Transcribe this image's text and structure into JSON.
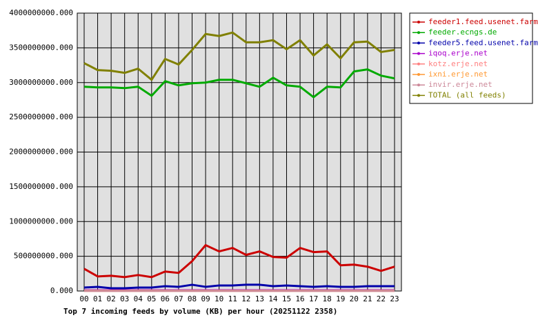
{
  "chart_data": {
    "type": "line",
    "title": "Top 7 incoming feeds by volume (KB) per hour (20251122 2358)",
    "categories": [
      "00",
      "01",
      "02",
      "03",
      "04",
      "05",
      "06",
      "07",
      "08",
      "09",
      "10",
      "11",
      "12",
      "13",
      "14",
      "15",
      "16",
      "17",
      "18",
      "19",
      "20",
      "21",
      "22",
      "23"
    ],
    "ylim": [
      0,
      4000000000
    ],
    "yticks": [
      {
        "value": 0,
        "label": "0.000"
      },
      {
        "value": 500000000,
        "label": "500000000.000"
      },
      {
        "value": 1000000000,
        "label": "1000000000.000"
      },
      {
        "value": 1500000000,
        "label": "1500000000.000"
      },
      {
        "value": 2000000000,
        "label": "2000000000.000"
      },
      {
        "value": 2500000000,
        "label": "2500000000.000"
      },
      {
        "value": 3000000000,
        "label": "3000000000.000"
      },
      {
        "value": 3500000000,
        "label": "3500000000.000"
      },
      {
        "value": 4000000000,
        "label": "4000000000.000"
      }
    ],
    "grid": true,
    "series": [
      {
        "name": "feeder1.feed.usenet.farm",
        "color": "#cc0000",
        "values": [
          320000000,
          210000000,
          220000000,
          200000000,
          230000000,
          200000000,
          280000000,
          260000000,
          430000000,
          660000000,
          570000000,
          620000000,
          520000000,
          570000000,
          490000000,
          480000000,
          620000000,
          560000000,
          570000000,
          370000000,
          380000000,
          350000000,
          290000000,
          350000000
        ]
      },
      {
        "name": "feeder.ecngs.de",
        "color": "#00aa00",
        "values": [
          2940000000,
          2930000000,
          2930000000,
          2920000000,
          2940000000,
          2810000000,
          3020000000,
          2960000000,
          2990000000,
          3000000000,
          3040000000,
          3040000000,
          2990000000,
          2940000000,
          3070000000,
          2960000000,
          2940000000,
          2790000000,
          2940000000,
          2930000000,
          3160000000,
          3190000000,
          3100000000,
          3060000000
        ]
      },
      {
        "name": "feeder5.feed.usenet.farm",
        "color": "#0000aa",
        "values": [
          50000000,
          60000000,
          40000000,
          40000000,
          50000000,
          50000000,
          70000000,
          60000000,
          90000000,
          60000000,
          80000000,
          80000000,
          90000000,
          90000000,
          70000000,
          80000000,
          70000000,
          60000000,
          70000000,
          60000000,
          60000000,
          70000000,
          70000000,
          70000000
        ]
      },
      {
        "name": "iqoq.erje.net",
        "color": "#aa00cc",
        "values": [
          10000000,
          10000000,
          10000000,
          10000000,
          10000000,
          10000000,
          10000000,
          10000000,
          10000000,
          10000000,
          10000000,
          10000000,
          10000000,
          10000000,
          10000000,
          10000000,
          10000000,
          10000000,
          10000000,
          10000000,
          10000000,
          10000000,
          10000000,
          10000000
        ]
      },
      {
        "name": "kotz.erje.net",
        "color": "#ff8080",
        "values": [
          5000000,
          5000000,
          5000000,
          5000000,
          5000000,
          5000000,
          5000000,
          5000000,
          5000000,
          5000000,
          5000000,
          5000000,
          5000000,
          5000000,
          5000000,
          5000000,
          5000000,
          5000000,
          5000000,
          5000000,
          5000000,
          5000000,
          5000000,
          5000000
        ]
      },
      {
        "name": "ixni.erje.net",
        "color": "#ff9933",
        "values": [
          3000000,
          3000000,
          3000000,
          3000000,
          3000000,
          3000000,
          3000000,
          3000000,
          3000000,
          3000000,
          3000000,
          3000000,
          3000000,
          3000000,
          3000000,
          3000000,
          3000000,
          3000000,
          3000000,
          3000000,
          3000000,
          3000000,
          3000000,
          3000000
        ]
      },
      {
        "name": "invir.erje.net",
        "color": "#cc8899",
        "values": [
          2000000,
          2000000,
          2000000,
          2000000,
          2000000,
          2000000,
          2000000,
          2000000,
          2000000,
          2000000,
          2000000,
          2000000,
          2000000,
          2000000,
          2000000,
          2000000,
          2000000,
          2000000,
          2000000,
          2000000,
          2000000,
          2000000,
          2000000,
          2000000
        ]
      },
      {
        "name": "TOTAL (all feeds)",
        "color": "#808000",
        "values": [
          3280000000,
          3180000000,
          3170000000,
          3140000000,
          3200000000,
          3040000000,
          3340000000,
          3260000000,
          3470000000,
          3700000000,
          3670000000,
          3720000000,
          3580000000,
          3580000000,
          3610000000,
          3480000000,
          3610000000,
          3390000000,
          3550000000,
          3350000000,
          3580000000,
          3590000000,
          3440000000,
          3470000000
        ]
      }
    ]
  }
}
